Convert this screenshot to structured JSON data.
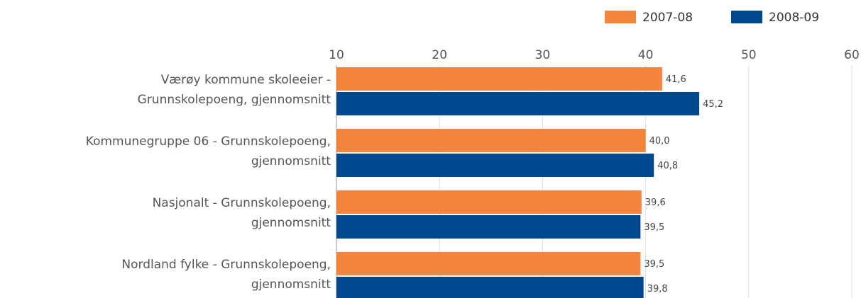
{
  "chart_data": {
    "type": "bar",
    "orientation": "horizontal",
    "categories": [
      [
        "Værøy kommune skoleeier -",
        "Grunnskolepoeng, gjennomsnitt"
      ],
      [
        "Kommunegruppe 06 - Grunnskolepoeng,",
        "gjennomsnitt"
      ],
      [
        "Nasjonalt - Grunnskolepoeng,",
        "gjennomsnitt"
      ],
      [
        "Nordland fylke - Grunnskolepoeng,",
        "gjennomsnitt"
      ]
    ],
    "series": [
      {
        "name": "2007-08",
        "color": "#f5843c",
        "values": [
          41.6,
          40.0,
          39.6,
          39.5
        ],
        "value_labels": [
          "41,6",
          "40,0",
          "39,6",
          "39,5"
        ]
      },
      {
        "name": "2008-09",
        "color": "#004990",
        "values": [
          45.2,
          40.8,
          39.5,
          39.8
        ],
        "value_labels": [
          "45,2",
          "40,8",
          "39,5",
          "39,8"
        ]
      }
    ],
    "xlim": [
      10,
      60
    ],
    "xticks": [
      10,
      20,
      30,
      40,
      50,
      60
    ],
    "grid": true,
    "legend": "top-right"
  }
}
